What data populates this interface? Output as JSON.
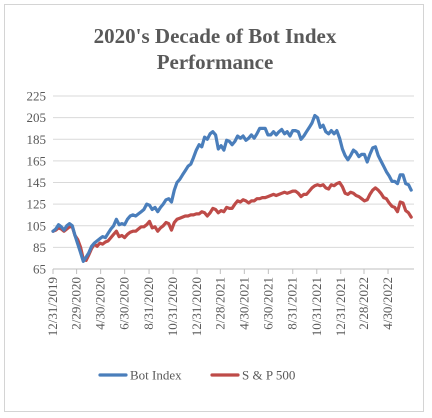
{
  "chart_data": {
    "type": "line",
    "title_line1": "2020's Decade of Bot Index",
    "title_line2": "Performance",
    "xlabel": "",
    "ylabel": "",
    "ylim": [
      65,
      225
    ],
    "y_ticks": [
      65,
      85,
      105,
      125,
      145,
      165,
      185,
      205,
      225
    ],
    "x_range": [
      "2019-12-31",
      "2022-07-05"
    ],
    "x_tick_labels": [
      "12/31/2019",
      "2/29/2020",
      "4/30/2020",
      "6/30/2020",
      "8/31/2020",
      "10/31/2020",
      "12/31/2020",
      "2/28/2021",
      "4/30/2021",
      "6/30/2021",
      "8/31/2021",
      "10/31/2021",
      "12/31/2021",
      "2/28/2022",
      "4/30/2022"
    ],
    "x_tick_dates": [
      "2019-12-31",
      "2020-02-29",
      "2020-04-30",
      "2020-06-30",
      "2020-08-31",
      "2020-10-31",
      "2020-12-31",
      "2021-02-28",
      "2021-04-30",
      "2021-06-30",
      "2021-08-31",
      "2021-10-31",
      "2021-12-31",
      "2022-02-28",
      "2022-04-30"
    ],
    "grid": "horizontal",
    "legend_position": "bottom",
    "series": [
      {
        "name": "Bot Index",
        "color": "#4a7ebb",
        "points": [
          [
            "2019-12-31",
            100
          ],
          [
            "2020-01-07",
            102
          ],
          [
            "2020-01-14",
            106
          ],
          [
            "2020-01-21",
            104
          ],
          [
            "2020-01-28",
            101
          ],
          [
            "2020-02-04",
            105
          ],
          [
            "2020-02-11",
            107
          ],
          [
            "2020-02-18",
            105
          ],
          [
            "2020-02-25",
            96
          ],
          [
            "2020-03-03",
            88
          ],
          [
            "2020-03-10",
            80
          ],
          [
            "2020-03-17",
            72
          ],
          [
            "2020-03-24",
            76
          ],
          [
            "2020-03-31",
            80
          ],
          [
            "2020-04-07",
            86
          ],
          [
            "2020-04-14",
            89
          ],
          [
            "2020-04-21",
            91
          ],
          [
            "2020-04-28",
            93
          ],
          [
            "2020-05-05",
            95
          ],
          [
            "2020-05-12",
            94
          ],
          [
            "2020-05-19",
            98
          ],
          [
            "2020-05-26",
            102
          ],
          [
            "2020-06-02",
            105
          ],
          [
            "2020-06-09",
            111
          ],
          [
            "2020-06-16",
            106
          ],
          [
            "2020-06-23",
            107
          ],
          [
            "2020-06-30",
            106
          ],
          [
            "2020-07-07",
            111
          ],
          [
            "2020-07-14",
            114
          ],
          [
            "2020-07-21",
            115
          ],
          [
            "2020-07-28",
            114
          ],
          [
            "2020-08-04",
            116
          ],
          [
            "2020-08-11",
            118
          ],
          [
            "2020-08-18",
            120
          ],
          [
            "2020-08-25",
            125
          ],
          [
            "2020-09-01",
            124
          ],
          [
            "2020-09-08",
            120
          ],
          [
            "2020-09-15",
            122
          ],
          [
            "2020-09-22",
            118
          ],
          [
            "2020-09-29",
            122
          ],
          [
            "2020-10-06",
            125
          ],
          [
            "2020-10-13",
            129
          ],
          [
            "2020-10-20",
            130
          ],
          [
            "2020-10-27",
            127
          ],
          [
            "2020-11-03",
            138
          ],
          [
            "2020-11-10",
            145
          ],
          [
            "2020-11-17",
            148
          ],
          [
            "2020-11-24",
            152
          ],
          [
            "2020-12-01",
            156
          ],
          [
            "2020-12-08",
            160
          ],
          [
            "2020-12-15",
            162
          ],
          [
            "2020-12-22",
            168
          ],
          [
            "2020-12-29",
            175
          ],
          [
            "2021-01-05",
            180
          ],
          [
            "2021-01-12",
            178
          ],
          [
            "2021-01-19",
            187
          ],
          [
            "2021-01-26",
            185
          ],
          [
            "2021-02-02",
            190
          ],
          [
            "2021-02-09",
            192
          ],
          [
            "2021-02-16",
            189
          ],
          [
            "2021-02-23",
            176
          ],
          [
            "2021-03-02",
            179
          ],
          [
            "2021-03-09",
            175
          ],
          [
            "2021-03-16",
            184
          ],
          [
            "2021-03-23",
            183
          ],
          [
            "2021-03-30",
            180
          ],
          [
            "2021-04-06",
            183
          ],
          [
            "2021-04-13",
            188
          ],
          [
            "2021-04-20",
            186
          ],
          [
            "2021-04-27",
            188
          ],
          [
            "2021-05-04",
            184
          ],
          [
            "2021-05-11",
            186
          ],
          [
            "2021-05-18",
            189
          ],
          [
            "2021-05-25",
            186
          ],
          [
            "2021-06-01",
            190
          ],
          [
            "2021-06-08",
            195
          ],
          [
            "2021-06-15",
            195
          ],
          [
            "2021-06-22",
            195
          ],
          [
            "2021-06-29",
            189
          ],
          [
            "2021-07-06",
            189
          ],
          [
            "2021-07-13",
            192
          ],
          [
            "2021-07-20",
            189
          ],
          [
            "2021-07-27",
            192
          ],
          [
            "2021-08-03",
            194
          ],
          [
            "2021-08-10",
            190
          ],
          [
            "2021-08-17",
            192
          ],
          [
            "2021-08-24",
            188
          ],
          [
            "2021-08-31",
            193
          ],
          [
            "2021-09-07",
            193
          ],
          [
            "2021-09-14",
            192
          ],
          [
            "2021-09-21",
            185
          ],
          [
            "2021-09-28",
            188
          ],
          [
            "2021-10-05",
            192
          ],
          [
            "2021-10-12",
            196
          ],
          [
            "2021-10-19",
            200
          ],
          [
            "2021-10-26",
            207
          ],
          [
            "2021-11-02",
            205
          ],
          [
            "2021-11-09",
            196
          ],
          [
            "2021-11-16",
            198
          ],
          [
            "2021-11-23",
            192
          ],
          [
            "2021-11-30",
            190
          ],
          [
            "2021-12-07",
            193
          ],
          [
            "2021-12-14",
            190
          ],
          [
            "2021-12-21",
            193
          ],
          [
            "2021-12-28",
            186
          ],
          [
            "2022-01-04",
            176
          ],
          [
            "2022-01-11",
            170
          ],
          [
            "2022-01-18",
            166
          ],
          [
            "2022-01-25",
            170
          ],
          [
            "2022-02-01",
            175
          ],
          [
            "2022-02-08",
            173
          ],
          [
            "2022-02-15",
            169
          ],
          [
            "2022-02-22",
            171
          ],
          [
            "2022-03-01",
            171
          ],
          [
            "2022-03-08",
            164
          ],
          [
            "2022-03-15",
            171
          ],
          [
            "2022-03-22",
            177
          ],
          [
            "2022-03-29",
            178
          ],
          [
            "2022-04-05",
            170
          ],
          [
            "2022-04-12",
            165
          ],
          [
            "2022-04-19",
            160
          ],
          [
            "2022-04-26",
            155
          ],
          [
            "2022-05-03",
            151
          ],
          [
            "2022-05-10",
            146
          ],
          [
            "2022-05-17",
            146
          ],
          [
            "2022-05-24",
            144
          ],
          [
            "2022-05-31",
            152
          ],
          [
            "2022-06-07",
            152
          ],
          [
            "2022-06-14",
            144
          ],
          [
            "2022-06-21",
            143
          ],
          [
            "2022-06-28",
            138
          ]
        ]
      },
      {
        "name": "S & P 500",
        "color": "#be4b48",
        "points": [
          [
            "2019-12-31",
            100
          ],
          [
            "2020-01-07",
            101
          ],
          [
            "2020-01-14",
            103
          ],
          [
            "2020-01-21",
            102
          ],
          [
            "2020-01-28",
            100
          ],
          [
            "2020-02-04",
            102
          ],
          [
            "2020-02-11",
            104
          ],
          [
            "2020-02-18",
            104
          ],
          [
            "2020-02-25",
            96
          ],
          [
            "2020-03-03",
            92
          ],
          [
            "2020-03-10",
            85
          ],
          [
            "2020-03-17",
            74
          ],
          [
            "2020-03-24",
            73
          ],
          [
            "2020-03-31",
            78
          ],
          [
            "2020-04-07",
            84
          ],
          [
            "2020-04-14",
            88
          ],
          [
            "2020-04-21",
            86
          ],
          [
            "2020-04-28",
            89
          ],
          [
            "2020-05-05",
            88
          ],
          [
            "2020-05-12",
            90
          ],
          [
            "2020-05-19",
            91
          ],
          [
            "2020-05-26",
            94
          ],
          [
            "2020-06-02",
            97
          ],
          [
            "2020-06-09",
            100
          ],
          [
            "2020-06-16",
            95
          ],
          [
            "2020-06-23",
            96
          ],
          [
            "2020-06-30",
            94
          ],
          [
            "2020-07-07",
            97
          ],
          [
            "2020-07-14",
            99
          ],
          [
            "2020-07-21",
            100
          ],
          [
            "2020-07-28",
            100
          ],
          [
            "2020-08-04",
            102
          ],
          [
            "2020-08-11",
            104
          ],
          [
            "2020-08-18",
            104
          ],
          [
            "2020-08-25",
            106
          ],
          [
            "2020-09-01",
            109
          ],
          [
            "2020-09-08",
            103
          ],
          [
            "2020-09-15",
            104
          ],
          [
            "2020-09-22",
            100
          ],
          [
            "2020-09-29",
            103
          ],
          [
            "2020-10-06",
            105
          ],
          [
            "2020-10-13",
            108
          ],
          [
            "2020-10-20",
            107
          ],
          [
            "2020-10-27",
            101
          ],
          [
            "2020-11-03",
            108
          ],
          [
            "2020-11-10",
            111
          ],
          [
            "2020-11-17",
            112
          ],
          [
            "2020-11-24",
            113
          ],
          [
            "2020-12-01",
            114
          ],
          [
            "2020-12-08",
            114
          ],
          [
            "2020-12-15",
            115
          ],
          [
            "2020-12-22",
            115
          ],
          [
            "2020-12-29",
            116
          ],
          [
            "2021-01-05",
            116
          ],
          [
            "2021-01-12",
            118
          ],
          [
            "2021-01-19",
            117
          ],
          [
            "2021-01-26",
            114
          ],
          [
            "2021-02-02",
            117
          ],
          [
            "2021-02-09",
            121
          ],
          [
            "2021-02-16",
            120
          ],
          [
            "2021-02-23",
            117
          ],
          [
            "2021-03-02",
            119
          ],
          [
            "2021-03-09",
            118
          ],
          [
            "2021-03-16",
            122
          ],
          [
            "2021-03-23",
            121
          ],
          [
            "2021-03-30",
            121
          ],
          [
            "2021-04-06",
            125
          ],
          [
            "2021-04-13",
            128
          ],
          [
            "2021-04-20",
            127
          ],
          [
            "2021-04-27",
            129
          ],
          [
            "2021-05-04",
            128
          ],
          [
            "2021-05-11",
            126
          ],
          [
            "2021-05-18",
            128
          ],
          [
            "2021-05-25",
            128
          ],
          [
            "2021-06-01",
            130
          ],
          [
            "2021-06-08",
            130
          ],
          [
            "2021-06-15",
            131
          ],
          [
            "2021-06-22",
            131
          ],
          [
            "2021-06-29",
            132
          ],
          [
            "2021-07-06",
            133
          ],
          [
            "2021-07-13",
            134
          ],
          [
            "2021-07-20",
            133
          ],
          [
            "2021-07-27",
            134
          ],
          [
            "2021-08-03",
            135
          ],
          [
            "2021-08-10",
            136
          ],
          [
            "2021-08-17",
            135
          ],
          [
            "2021-08-24",
            136
          ],
          [
            "2021-08-31",
            137
          ],
          [
            "2021-09-07",
            137
          ],
          [
            "2021-09-14",
            135
          ],
          [
            "2021-09-21",
            132
          ],
          [
            "2021-09-28",
            134
          ],
          [
            "2021-10-05",
            134
          ],
          [
            "2021-10-12",
            137
          ],
          [
            "2021-10-19",
            140
          ],
          [
            "2021-10-26",
            142
          ],
          [
            "2021-11-02",
            143
          ],
          [
            "2021-11-09",
            142
          ],
          [
            "2021-11-16",
            143
          ],
          [
            "2021-11-23",
            140
          ],
          [
            "2021-11-30",
            139
          ],
          [
            "2021-12-07",
            143
          ],
          [
            "2021-12-14",
            142
          ],
          [
            "2021-12-21",
            144
          ],
          [
            "2021-12-28",
            145
          ],
          [
            "2022-01-04",
            141
          ],
          [
            "2022-01-11",
            135
          ],
          [
            "2022-01-18",
            134
          ],
          [
            "2022-01-25",
            136
          ],
          [
            "2022-02-01",
            135
          ],
          [
            "2022-02-08",
            133
          ],
          [
            "2022-02-15",
            132
          ],
          [
            "2022-02-22",
            130
          ],
          [
            "2022-03-01",
            128
          ],
          [
            "2022-03-08",
            129
          ],
          [
            "2022-03-15",
            134
          ],
          [
            "2022-03-22",
            138
          ],
          [
            "2022-03-29",
            140
          ],
          [
            "2022-04-05",
            138
          ],
          [
            "2022-04-12",
            135
          ],
          [
            "2022-04-19",
            131
          ],
          [
            "2022-04-26",
            130
          ],
          [
            "2022-05-03",
            126
          ],
          [
            "2022-05-10",
            123
          ],
          [
            "2022-05-17",
            122
          ],
          [
            "2022-05-24",
            118
          ],
          [
            "2022-05-31",
            127
          ],
          [
            "2022-06-07",
            126
          ],
          [
            "2022-06-14",
            119
          ],
          [
            "2022-06-21",
            117
          ],
          [
            "2022-06-28",
            113
          ]
        ]
      }
    ]
  }
}
